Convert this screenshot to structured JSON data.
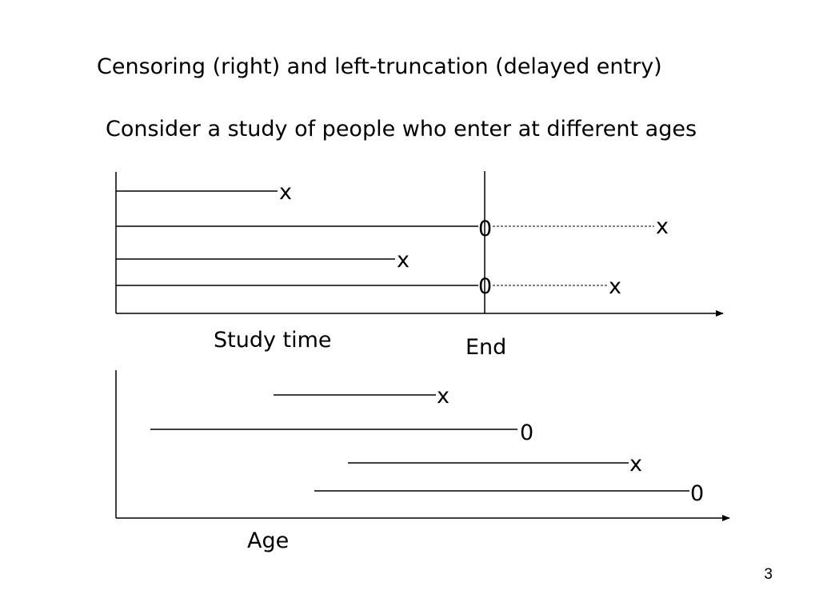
{
  "slide": {
    "title": "Censoring (right) and left-truncation (delayed entry)",
    "subtitle": "Consider a study of people who enter at different ages",
    "page_number": "3"
  },
  "study_time_panel": {
    "x_label": "Study time",
    "end_label": "End",
    "rows": [
      {
        "event_marker": "x",
        "censored": false
      },
      {
        "event_marker": "x",
        "censor_marker": "0",
        "censored": true
      },
      {
        "event_marker": "x",
        "censored": false
      },
      {
        "event_marker": "x",
        "censor_marker": "0",
        "censored": true
      }
    ]
  },
  "age_panel": {
    "x_label": "Age",
    "rows": [
      {
        "marker": "x"
      },
      {
        "marker": "0"
      },
      {
        "marker": "x"
      },
      {
        "marker": "0"
      }
    ]
  }
}
